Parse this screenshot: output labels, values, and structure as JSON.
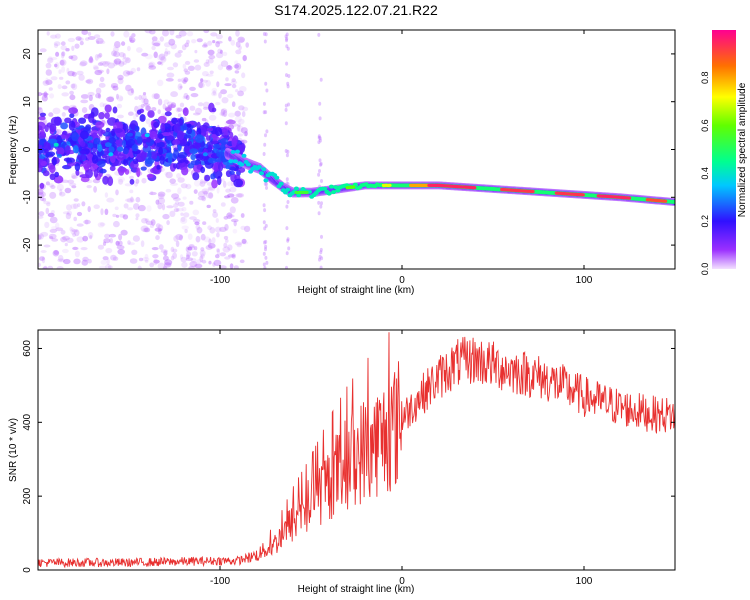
{
  "figure": {
    "title": "S174.2025.122.07.21.R22"
  },
  "chart_data": [
    {
      "type": "heatmap",
      "title": "S174.2025.122.07.21.R22",
      "xlabel": "Height of straight line (km)",
      "ylabel": "Frequency (Hz)",
      "xlim": [
        -200,
        150
      ],
      "ylim": [
        -25,
        25
      ],
      "x_ticks": [
        -100,
        0,
        100
      ],
      "y_ticks": [
        -20,
        -10,
        0,
        10,
        20
      ],
      "colorbar": {
        "label": "Normalized spectral amplitude",
        "range": [
          0.0,
          1.0
        ],
        "ticks": [
          0.0,
          0.2,
          0.4,
          0.6,
          0.8
        ]
      },
      "grid": false,
      "ridge": {
        "description_points_x": [
          -200,
          -150,
          -110,
          -95,
          -85,
          -78,
          -72,
          -65,
          -60,
          -50,
          -40,
          -30,
          -20,
          -10,
          0,
          20,
          40,
          60,
          80,
          100,
          120,
          150
        ],
        "frequency_y": [
          0,
          1,
          1,
          -1,
          -3,
          -4,
          -6,
          -8,
          -9,
          -9,
          -8.5,
          -8,
          -7.5,
          -7.5,
          -7.5,
          -7.5,
          -8,
          -8.5,
          -9,
          -9.5,
          -10,
          -11
        ]
      }
    },
    {
      "type": "line",
      "xlabel": "Height of straight line (km)",
      "ylabel": "SNR (10 * v/v)",
      "xlim": [
        -200,
        150
      ],
      "ylim": [
        0,
        650
      ],
      "x_ticks": [
        -100,
        0,
        100
      ],
      "y_ticks": [
        0,
        200,
        400,
        600
      ],
      "grid": false,
      "color": "#e8302f",
      "envelope": {
        "x": [
          -200,
          -150,
          -100,
          -90,
          -80,
          -70,
          -60,
          -50,
          -40,
          -30,
          -20,
          -10,
          0,
          10,
          20,
          30,
          40,
          50,
          60,
          70,
          80,
          90,
          100,
          110,
          120,
          130,
          140,
          150
        ],
        "y": [
          20,
          20,
          25,
          25,
          40,
          70,
          130,
          180,
          240,
          290,
          330,
          360,
          410,
          470,
          520,
          560,
          570,
          555,
          540,
          530,
          515,
          495,
          470,
          455,
          440,
          430,
          420,
          420
        ]
      }
    }
  ]
}
